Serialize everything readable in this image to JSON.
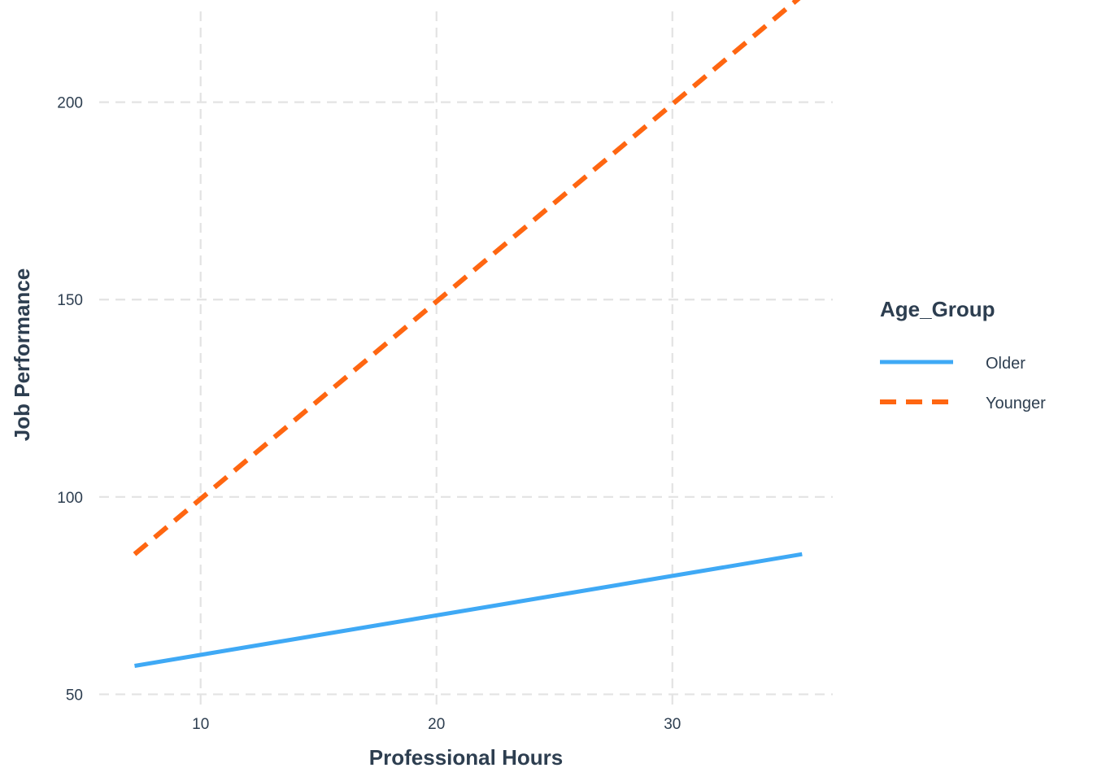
{
  "chart_data": {
    "type": "line",
    "title": "",
    "xlabel": "Professional Hours",
    "ylabel": "Job Performance",
    "xlim": [
      5.7,
      36.8
    ],
    "ylim": [
      47,
      223
    ],
    "x_ticks": [
      10,
      20,
      30
    ],
    "y_ticks": [
      50,
      100,
      150,
      200
    ],
    "x_tick_labels": [
      "10",
      "20",
      "30"
    ],
    "y_tick_labels": [
      "50",
      "100",
      "150",
      "200"
    ],
    "grid": true,
    "legend": {
      "title": "Age_Group",
      "placement": "right"
    },
    "series": [
      {
        "name": "Older",
        "color": "#3fa9f5",
        "line_style": "solid",
        "x": [
          7.2,
          35.5
        ],
        "y": [
          57.2,
          85.5
        ]
      },
      {
        "name": "Younger",
        "color": "#ff6611",
        "line_style": "dashed",
        "x": [
          7.2,
          35.5
        ],
        "y": [
          85.5,
          227
        ]
      }
    ]
  }
}
